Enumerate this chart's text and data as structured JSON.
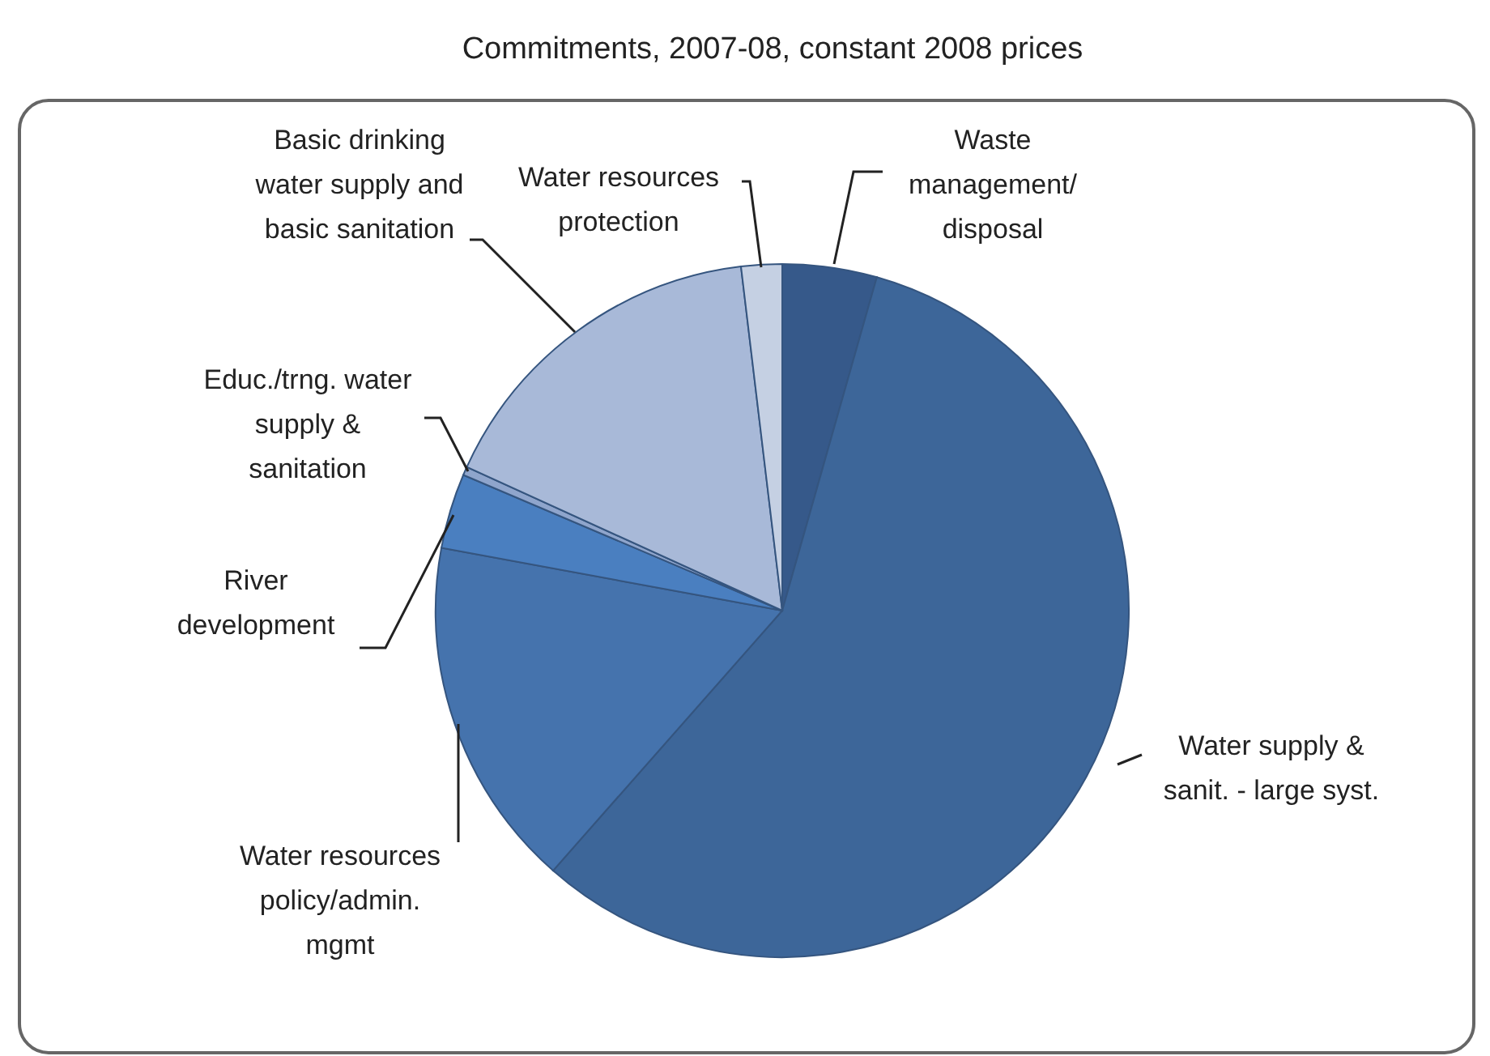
{
  "chart_data": {
    "type": "pie",
    "title": "Commitments, 2007-08, constant 2008 prices",
    "categories": [
      "Waste management/disposal",
      "Water supply & sanit. - large syst.",
      "Water resources policy/admin. mgmt",
      "River development",
      "Educ./trng. water supply & sanitation",
      "Basic drinking water supply and basic sanitation",
      "Water resources protection"
    ],
    "values": [
      4.4,
      57.1,
      16.4,
      3.5,
      0.4,
      16.3,
      1.9
    ],
    "colors": [
      "#36598a",
      "#3d6699",
      "#4573ad",
      "#4a7fc0",
      "#8fa5cc",
      "#a8b9d8",
      "#c5d0e3"
    ]
  }
}
